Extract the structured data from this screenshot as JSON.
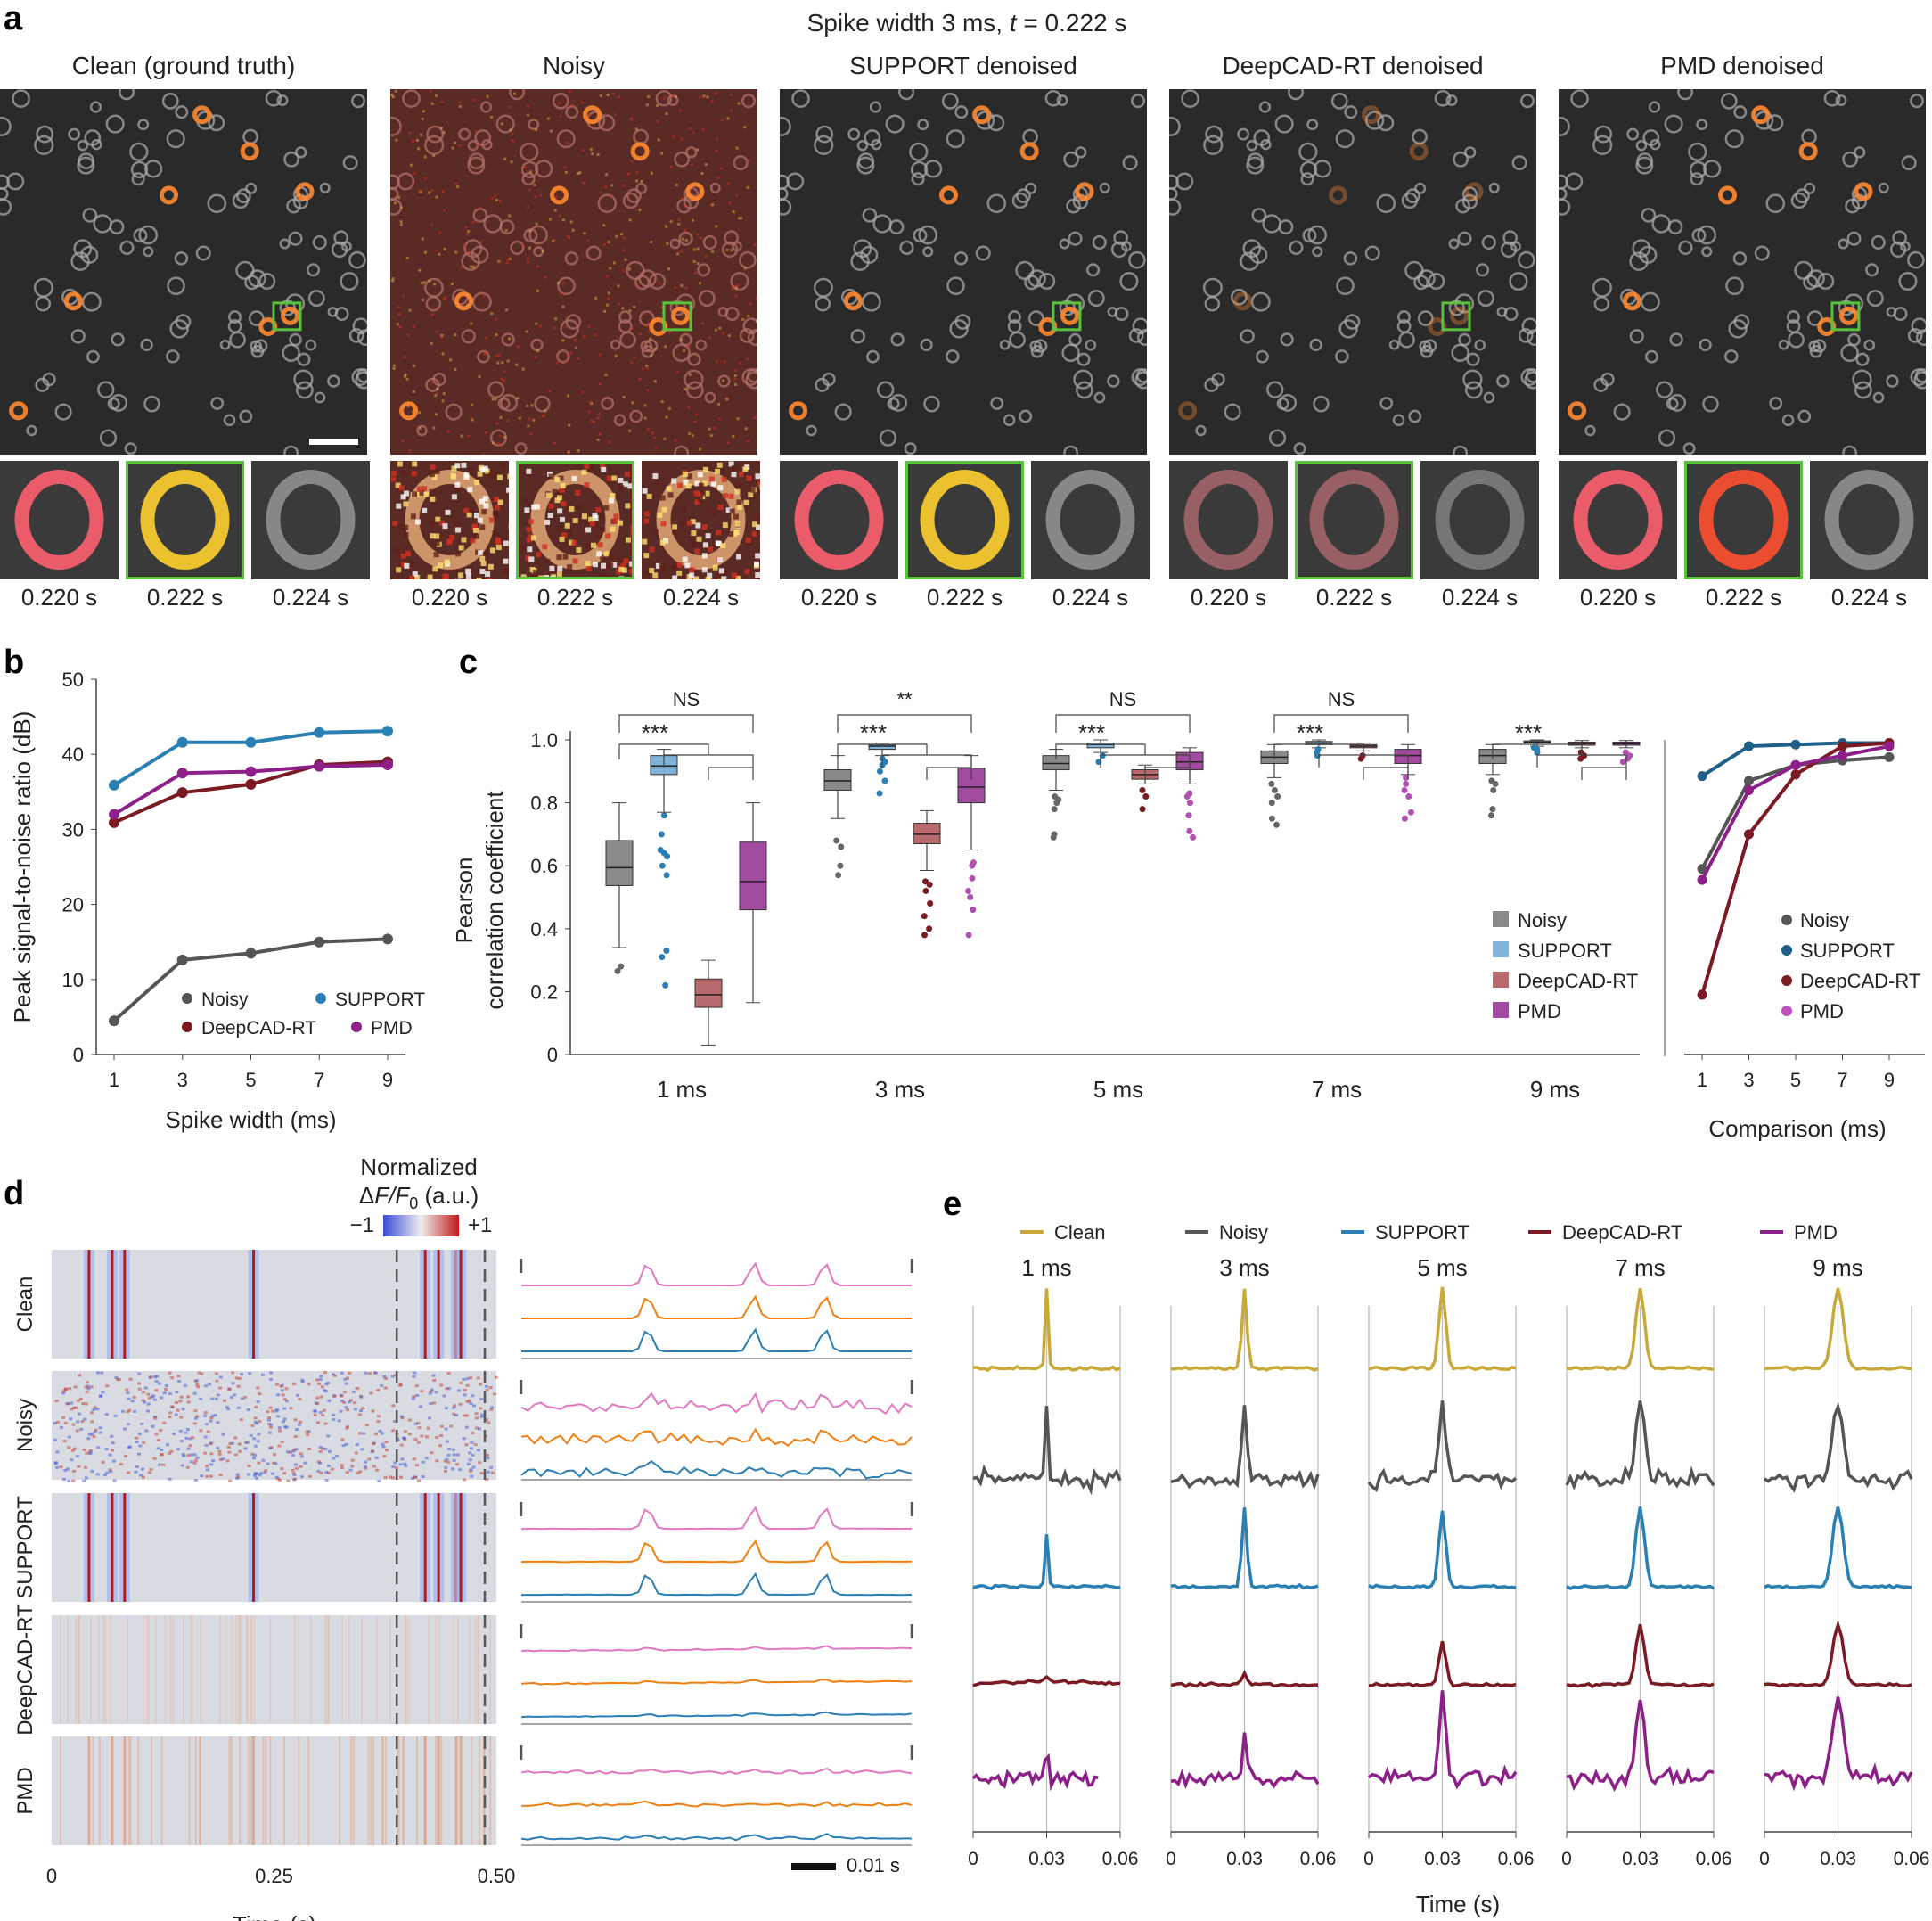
{
  "panels": {
    "a": "a",
    "b": "b",
    "c": "c",
    "d": "d",
    "e": "e"
  },
  "colors": {
    "noisy": "#555555",
    "support": "#2a7fb5",
    "deepcad": "#7b1a22",
    "pmd": "#8d2088",
    "clean": "#c9a93a",
    "orange": "#f07f12",
    "pink": "#e377c2",
    "blue": "#2a7fb5",
    "green": "#57c23b"
  },
  "panel_a": {
    "title_prefix": "Spike width 3 ms, ",
    "title_t": "t",
    "title_suffix": " = 0.222 s",
    "columns": [
      {
        "title": "Clean (ground truth)",
        "variant": "clean",
        "t": [
          "0.220 s",
          "0.222 s",
          "0.224 s"
        ]
      },
      {
        "title": "Noisy",
        "variant": "noisy",
        "t": [
          "0.220 s",
          "0.222 s",
          "0.224 s"
        ]
      },
      {
        "title": "SUPPORT denoised",
        "variant": "support",
        "t": [
          "0.220 s",
          "0.222 s",
          "0.224 s"
        ]
      },
      {
        "title": "DeepCAD-RT denoised",
        "variant": "deepcad",
        "t": [
          "0.220 s",
          "0.222 s",
          "0.224 s"
        ]
      },
      {
        "title": "PMD denoised",
        "variant": "pmd",
        "t": [
          "0.220 s",
          "0.222 s",
          "0.224 s"
        ]
      }
    ]
  },
  "chart_data": [
    {
      "id": "b",
      "type": "line",
      "xlabel": "Spike width (ms)",
      "ylabel": "Peak signal-to-noise ratio (dB)",
      "x": [
        1,
        3,
        5,
        7,
        9
      ],
      "ylim": [
        0,
        50
      ],
      "yticks": [
        0,
        10,
        20,
        30,
        40,
        50
      ],
      "series": [
        {
          "name": "Noisy",
          "values": [
            4.5,
            12.6,
            13.5,
            15.0,
            15.4
          ]
        },
        {
          "name": "SUPPORT",
          "values": [
            35.9,
            41.6,
            41.6,
            42.9,
            43.1
          ]
        },
        {
          "name": "DeepCAD-RT",
          "values": [
            30.9,
            34.9,
            36.0,
            38.6,
            39.0
          ]
        },
        {
          "name": "PMD",
          "values": [
            32.0,
            37.5,
            37.7,
            38.4,
            38.6
          ]
        }
      ]
    },
    {
      "id": "c",
      "type": "box",
      "ylabel": "Pearson correlation coefficient",
      "ylabel_lines": [
        "Pearson",
        "correlation coefficient"
      ],
      "ylim": [
        0,
        1.0
      ],
      "yticks": [
        "0",
        "0.2",
        "0.4",
        "0.6",
        "0.8",
        "1.0"
      ],
      "groups": [
        "1 ms",
        "3 ms",
        "5 ms",
        "7 ms",
        "9 ms"
      ],
      "significance": [
        "NS",
        "**",
        "NS",
        "NS",
        ""
      ],
      "stars": "***",
      "series_names": [
        "Noisy",
        "SUPPORT",
        "DeepCAD-RT",
        "PMD"
      ],
      "boxes": [
        [
          {
            "q1": 0.537,
            "med": 0.594,
            "q3": 0.68,
            "lo": 0.34,
            "hi": 0.8,
            "fl": [
              0.265,
              0.28
            ]
          },
          {
            "q1": 0.89,
            "med": 0.917,
            "q3": 0.95,
            "lo": 0.77,
            "hi": 0.97,
            "fl": [
              0.22,
              0.31,
              0.33,
              0.57,
              0.6,
              0.63,
              0.64,
              0.65,
              0.7,
              0.76
            ]
          },
          {
            "q1": 0.15,
            "med": 0.19,
            "q3": 0.24,
            "lo": 0.03,
            "hi": 0.3,
            "fl": []
          },
          {
            "q1": 0.46,
            "med": 0.55,
            "q3": 0.675,
            "lo": 0.165,
            "hi": 0.8,
            "fl": []
          }
        ],
        [
          {
            "q1": 0.84,
            "med": 0.87,
            "q3": 0.905,
            "lo": 0.75,
            "hi": 0.95,
            "fl": [
              0.57,
              0.6,
              0.66,
              0.68
            ]
          },
          {
            "q1": 0.97,
            "med": 0.98,
            "q3": 0.985,
            "lo": 0.95,
            "hi": 0.99,
            "fl": [
              0.83,
              0.87,
              0.9,
              0.92,
              0.93,
              0.94
            ]
          },
          {
            "q1": 0.67,
            "med": 0.7,
            "q3": 0.735,
            "lo": 0.585,
            "hi": 0.775,
            "fl": [
              0.38,
              0.4,
              0.44,
              0.48,
              0.52,
              0.54,
              0.55
            ]
          },
          {
            "q1": 0.8,
            "med": 0.85,
            "q3": 0.91,
            "lo": 0.65,
            "hi": 0.95,
            "fl": [
              0.38,
              0.46,
              0.5,
              0.52,
              0.56,
              0.6,
              0.61
            ]
          }
        ],
        [
          {
            "q1": 0.905,
            "med": 0.925,
            "q3": 0.95,
            "lo": 0.84,
            "hi": 0.97,
            "fl": [
              0.69,
              0.7,
              0.78,
              0.8,
              0.81,
              0.82
            ]
          },
          {
            "q1": 0.975,
            "med": 0.985,
            "q3": 0.99,
            "lo": 0.96,
            "hi": 1.0,
            "fl": [
              0.93,
              0.95
            ]
          },
          {
            "q1": 0.875,
            "med": 0.89,
            "q3": 0.905,
            "lo": 0.86,
            "hi": 0.92,
            "fl": [
              0.78,
              0.82,
              0.84
            ]
          },
          {
            "q1": 0.905,
            "med": 0.93,
            "q3": 0.96,
            "lo": 0.86,
            "hi": 0.975,
            "fl": [
              0.69,
              0.71,
              0.76,
              0.8,
              0.82,
              0.83
            ]
          }
        ],
        [
          {
            "q1": 0.925,
            "med": 0.945,
            "q3": 0.965,
            "lo": 0.88,
            "hi": 0.985,
            "fl": [
              0.73,
              0.75,
              0.8,
              0.82,
              0.84,
              0.86
            ]
          },
          {
            "q1": 0.985,
            "med": 0.99,
            "q3": 0.995,
            "lo": 0.975,
            "hi": 1.0,
            "fl": [
              0.95,
              0.96,
              0.97
            ]
          },
          {
            "q1": 0.975,
            "med": 0.98,
            "q3": 0.985,
            "lo": 0.965,
            "hi": 0.99,
            "fl": [
              0.94,
              0.95
            ]
          },
          {
            "q1": 0.925,
            "med": 0.95,
            "q3": 0.97,
            "lo": 0.89,
            "hi": 0.985,
            "fl": [
              0.75,
              0.77,
              0.82,
              0.84,
              0.86,
              0.88
            ]
          }
        ],
        [
          {
            "q1": 0.925,
            "med": 0.95,
            "q3": 0.97,
            "lo": 0.89,
            "hi": 0.985,
            "fl": [
              0.76,
              0.78,
              0.84,
              0.86,
              0.87
            ]
          },
          {
            "q1": 0.99,
            "med": 0.993,
            "q3": 0.997,
            "lo": 0.98,
            "hi": 1.0,
            "fl": [
              0.96,
              0.97,
              0.975
            ]
          },
          {
            "q1": 0.983,
            "med": 0.988,
            "q3": 0.993,
            "lo": 0.975,
            "hi": 0.998,
            "fl": [
              0.94,
              0.95,
              0.96
            ]
          },
          {
            "q1": 0.983,
            "med": 0.988,
            "q3": 0.993,
            "lo": 0.975,
            "hi": 0.998,
            "fl": [
              0.93,
              0.94,
              0.95,
              0.96
            ]
          }
        ]
      ]
    },
    {
      "id": "c_comparison",
      "type": "line",
      "xlabel": "Comparison (ms)",
      "x": [
        1,
        3,
        5,
        7,
        9
      ],
      "ylim": [
        0,
        1.0
      ],
      "series": [
        {
          "name": "Noisy",
          "values": [
            0.59,
            0.87,
            0.92,
            0.935,
            0.945
          ]
        },
        {
          "name": "SUPPORT",
          "values": [
            0.885,
            0.98,
            0.985,
            0.99,
            0.99
          ]
        },
        {
          "name": "DeepCAD-RT",
          "values": [
            0.19,
            0.7,
            0.89,
            0.98,
            0.99
          ]
        },
        {
          "name": "PMD",
          "values": [
            0.555,
            0.84,
            0.92,
            0.95,
            0.98
          ]
        }
      ]
    },
    {
      "id": "d",
      "type": "heatmap",
      "title_lines": [
        "Normalized"
      ],
      "title_f": "F",
      "title_sub": "0",
      "title_unit": " (a.u.)",
      "cbar": [
        "−1",
        "+1"
      ],
      "rows": [
        "Clean",
        "Noisy",
        "SUPPORT",
        "DeepCAD-RT",
        "PMD"
      ],
      "xlabel": "Time (s)",
      "xticks": [
        "0",
        "0.25",
        "0.50"
      ],
      "xmax": 0.5,
      "spikes": [
        0.042,
        0.068,
        0.082,
        0.227,
        0.42,
        0.435,
        0.455,
        0.46
      ],
      "window": [
        0.388,
        0.487
      ],
      "traces": [
        {
          "orders": [
            "pink",
            "orange",
            "blue"
          ],
          "spk_t": [
            0.42,
            0.447,
            0.465
          ],
          "amp": 1.0,
          "noise": 0.0
        },
        {
          "orders": [
            "pink",
            "orange",
            "blue"
          ],
          "spk_t": [
            0.42,
            0.447,
            0.465
          ],
          "amp": 0.4,
          "noise": 1.0
        },
        {
          "orders": [
            "pink",
            "orange",
            "blue"
          ],
          "spk_t": [
            0.42,
            0.447,
            0.465
          ],
          "amp": 0.95,
          "noise": 0.05
        },
        {
          "orders": [
            "pink",
            "orange",
            "blue"
          ],
          "spk_t": [
            0.42,
            0.447,
            0.465
          ],
          "amp": 0.12,
          "noise": 0.12
        },
        {
          "orders": [
            "pink",
            "orange",
            "blue"
          ],
          "spk_t": [
            0.42,
            0.447,
            0.465
          ],
          "amp": 0.15,
          "noise": 0.3
        }
      ],
      "scalebar": "0.01 s"
    },
    {
      "id": "e",
      "type": "line",
      "legend": [
        "Clean",
        "Noisy",
        "SUPPORT",
        "DeepCAD-RT",
        "PMD"
      ],
      "widths": [
        "1 ms",
        "3 ms",
        "5 ms",
        "7 ms",
        "9 ms"
      ],
      "xticks": [
        "0",
        "0.03",
        "0.06"
      ],
      "xlabel": "Time (s)",
      "peak_amp": {
        "Clean": [
          1.0,
          1.0,
          1.0,
          1.0,
          1.0
        ],
        "Noisy": [
          0.9,
          0.95,
          0.95,
          0.95,
          0.95
        ],
        "SUPPORT": [
          0.65,
          1.0,
          0.95,
          1.0,
          1.0
        ],
        "DeepCAD-RT": [
          0.05,
          0.15,
          0.55,
          0.75,
          0.75
        ],
        "PMD": [
          0.4,
          0.55,
          1.0,
          1.0,
          1.0
        ]
      }
    }
  ],
  "legend_labels": {
    "noisy": "Noisy",
    "support": "SUPPORT",
    "deepcad": "DeepCAD-RT",
    "pmd": "PMD"
  }
}
